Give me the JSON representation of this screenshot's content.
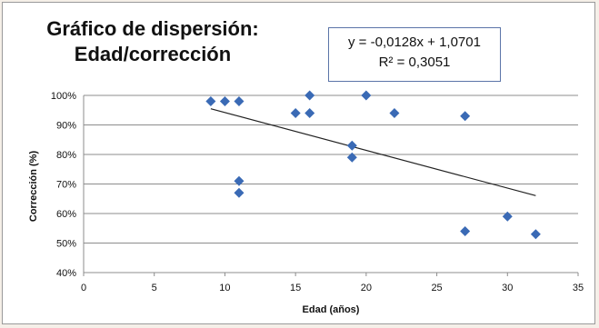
{
  "chart_data": {
    "type": "scatter",
    "title_lines": [
      "Gráfico de dispersión:",
      "Edad/corrección"
    ],
    "xlabel": "Edad (años)",
    "ylabel": "Corrección (%)",
    "xlim": [
      0,
      35
    ],
    "ylim": [
      0.4,
      1.0
    ],
    "x_ticks": [
      "0",
      "5",
      "10",
      "15",
      "20",
      "25",
      "30",
      "35"
    ],
    "y_ticks": [
      "40%",
      "50%",
      "60%",
      "70%",
      "80%",
      "90%",
      "100%"
    ],
    "grid": "horizontal",
    "marker_color": "#3a6ab5",
    "trendline_color": "#222222",
    "trendline": {
      "equation": "y = -0,0128x + 1,0701",
      "r2": "R² = 0,3051",
      "slope": -0.0128,
      "intercept": 1.0701,
      "x_start": 9,
      "x_end": 32
    },
    "points": [
      {
        "x": 9,
        "y": 0.98
      },
      {
        "x": 10,
        "y": 0.98
      },
      {
        "x": 11,
        "y": 0.98
      },
      {
        "x": 11,
        "y": 0.71
      },
      {
        "x": 11,
        "y": 0.67
      },
      {
        "x": 15,
        "y": 0.94
      },
      {
        "x": 16,
        "y": 1.0
      },
      {
        "x": 16,
        "y": 0.94
      },
      {
        "x": 19,
        "y": 0.83
      },
      {
        "x": 19,
        "y": 0.79
      },
      {
        "x": 20,
        "y": 1.0
      },
      {
        "x": 22,
        "y": 0.94
      },
      {
        "x": 27,
        "y": 0.93
      },
      {
        "x": 27,
        "y": 0.54
      },
      {
        "x": 30,
        "y": 0.59
      },
      {
        "x": 32,
        "y": 0.53
      }
    ]
  }
}
